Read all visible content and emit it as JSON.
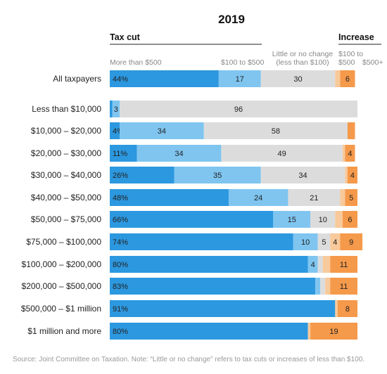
{
  "chart_data": {
    "type": "bar",
    "title": "2019",
    "orientation": "horizontal-stacked-100",
    "group_headers": [
      {
        "label": "Tax cut"
      },
      {
        "label": "Increase"
      }
    ],
    "segment_headers": [
      "More than $500",
      "$100 to $500",
      "Little or no change (less than $100)",
      "$100 to $500",
      "$500+"
    ],
    "segment_headers_lines": [
      [
        "More than $500"
      ],
      [
        "$100 to $500"
      ],
      [
        "Little or no change",
        "(less than $100)"
      ],
      [
        "$100 to",
        "$500"
      ],
      [
        "$500+"
      ]
    ],
    "colors": [
      "#2c98e0",
      "#7fc5f0",
      "#dcdcdc",
      "#f8c99a",
      "#f5994a"
    ],
    "xlim": [
      0,
      100
    ],
    "categories": [
      "All taxpayers",
      "Less than $10,000",
      "$10,000 – $20,000",
      "$20,000 – $30,000",
      "$30,000 – $40,000",
      "$40,000 – $50,000",
      "$50,000 – $75,000",
      "$75,000 – $100,000",
      "$100,000 – $200,000",
      "$200,000 – $500,000",
      "$500,000 – $1 million",
      "$1 million and more"
    ],
    "rows": [
      {
        "values": [
          44,
          17,
          30,
          2,
          6
        ],
        "labels": [
          "44%",
          "17",
          "30",
          "",
          "6"
        ]
      },
      {
        "values": [
          1,
          3,
          96,
          0,
          0
        ],
        "labels": [
          "",
          "3",
          "96",
          "",
          ""
        ]
      },
      {
        "values": [
          4,
          34,
          58,
          0,
          3
        ],
        "labels": [
          "4%",
          "34",
          "58",
          "",
          ""
        ]
      },
      {
        "values": [
          11,
          34,
          49,
          1,
          4
        ],
        "labels": [
          "11%",
          "34",
          "49",
          "",
          "4"
        ]
      },
      {
        "values": [
          26,
          35,
          34,
          1,
          4
        ],
        "labels": [
          "26%",
          "35",
          "34",
          "",
          "4"
        ]
      },
      {
        "values": [
          48,
          24,
          21,
          2,
          5
        ],
        "labels": [
          "48%",
          "24",
          "21",
          "",
          "5"
        ]
      },
      {
        "values": [
          66,
          15,
          10,
          3,
          6
        ],
        "labels": [
          "66%",
          "15",
          "10",
          "",
          "6"
        ]
      },
      {
        "values": [
          74,
          10,
          5,
          4,
          9
        ],
        "labels": [
          "74%",
          "10",
          "5",
          "4",
          "9"
        ]
      },
      {
        "values": [
          80,
          4,
          2,
          3,
          11
        ],
        "labels": [
          "80%",
          "4",
          "",
          "",
          "11"
        ]
      },
      {
        "values": [
          83,
          2,
          2,
          2,
          11
        ],
        "labels": [
          "83%",
          "",
          "",
          "",
          "11"
        ]
      },
      {
        "values": [
          91,
          0,
          0,
          1,
          8
        ],
        "labels": [
          "91%",
          "",
          "",
          "",
          "8"
        ]
      },
      {
        "values": [
          80,
          0,
          0,
          1,
          19
        ],
        "labels": [
          "80%",
          "",
          "",
          "",
          "19"
        ]
      }
    ],
    "source": "Source: Joint Committee on Taxation. Note: “Little or no change” refers to tax cuts or increases of less than $100."
  }
}
